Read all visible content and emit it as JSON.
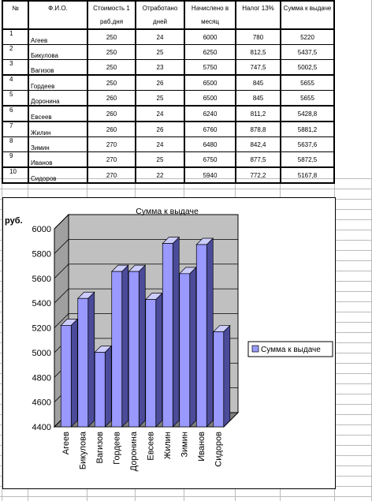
{
  "sheet": {
    "headers": [
      "№",
      "Ф.И.О.",
      "Стоимость 1 раб.дня",
      "Отработано дней",
      "Начислено в месяц",
      "Налог 13%",
      "Сумма к выдаче"
    ],
    "rows": [
      [
        "1",
        "Агеев",
        "250",
        "24",
        "6000",
        "780",
        "5220"
      ],
      [
        "2",
        "Бикулова",
        "250",
        "25",
        "6250",
        "812,5",
        "5437,5"
      ],
      [
        "3",
        "Вагизов",
        "250",
        "23",
        "5750",
        "747,5",
        "5002,5"
      ],
      [
        "4",
        "Гордеев",
        "250",
        "26",
        "6500",
        "845",
        "5655"
      ],
      [
        "5",
        "Доронина",
        "260",
        "25",
        "6500",
        "845",
        "5655"
      ],
      [
        "6",
        "Евсеев",
        "260",
        "24",
        "6240",
        "811,2",
        "5428,8"
      ],
      [
        "7",
        "Жилин",
        "260",
        "26",
        "6760",
        "878,8",
        "5881,2"
      ],
      [
        "8",
        "Зимин",
        "270",
        "24",
        "6480",
        "842,4",
        "5637,6"
      ],
      [
        "9",
        "Иванов",
        "270",
        "25",
        "6750",
        "877,5",
        "5872,5"
      ],
      [
        "10",
        "Сидоров",
        "270",
        "22",
        "5940",
        "772,2",
        "5167,8"
      ]
    ]
  },
  "chart_data": {
    "type": "bar",
    "title": "Сумма к выдаче",
    "ylabel": "руб.",
    "xlabel": "",
    "categories": [
      "Агеев",
      "Бикулова",
      "Вагизов",
      "Гордеев",
      "Доронина",
      "Евсеев",
      "Жилин",
      "Зимин",
      "Иванов",
      "Сидоров"
    ],
    "series": [
      {
        "name": "Сумма к выдаче",
        "values": [
          5220,
          5437.5,
          5002.5,
          5655,
          5655,
          5428.8,
          5881.2,
          5637.6,
          5872.5,
          5167.8
        ]
      }
    ],
    "ylim": [
      4400,
      6000
    ],
    "yticks": [
      "4400",
      "4600",
      "4800",
      "5000",
      "5200",
      "5400",
      "5600",
      "5800",
      "6000"
    ],
    "grid": true,
    "legend": "right",
    "colors": {
      "bar_front": "#9999ff",
      "bar_side": "#4b4b9a",
      "bar_top": "#ccccff",
      "wall": "#c0c0c0",
      "floor": "#808080"
    }
  }
}
